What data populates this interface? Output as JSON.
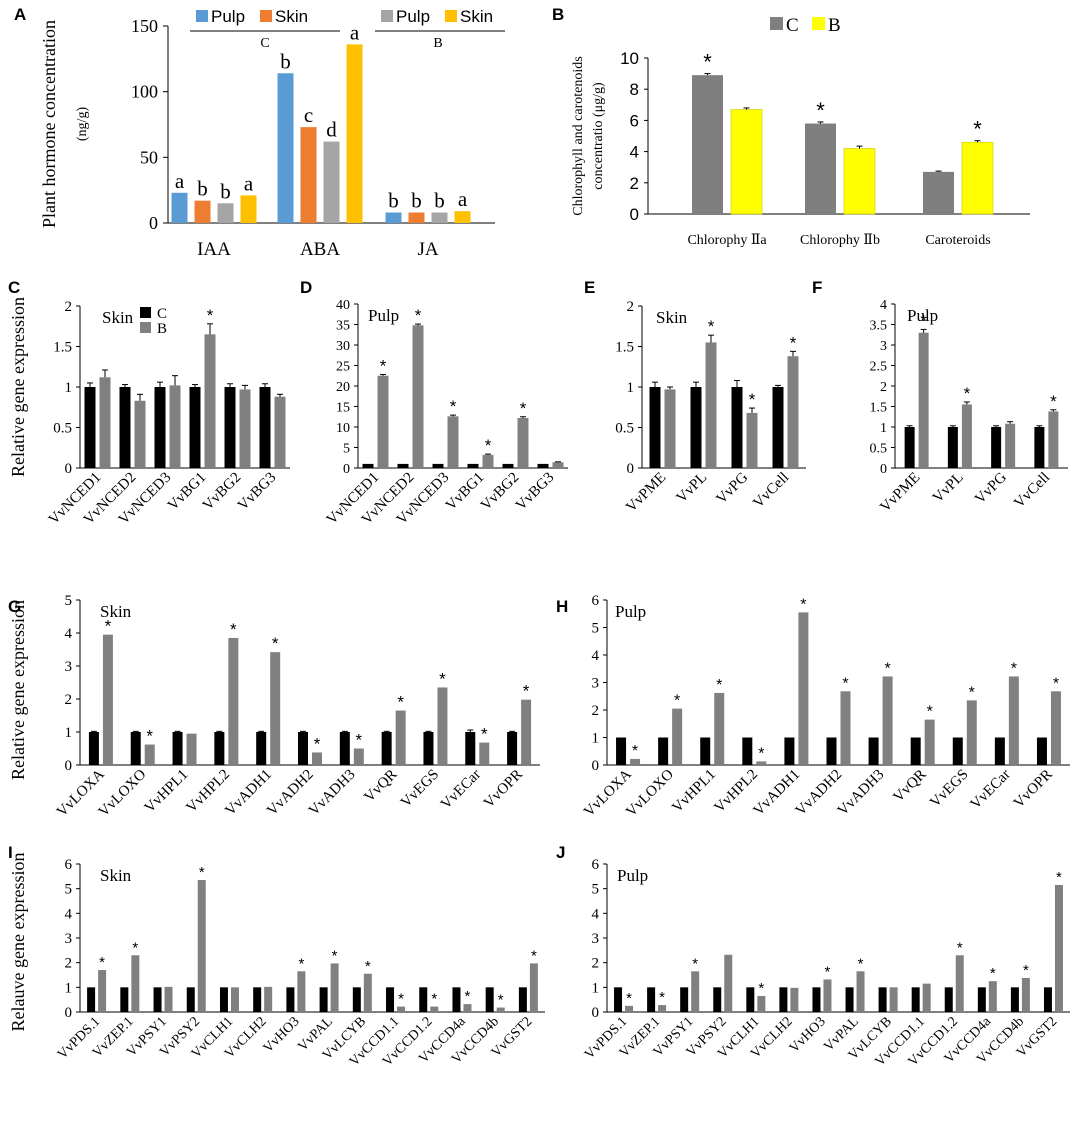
{
  "figure": {
    "panel_letters": [
      "A",
      "B",
      "C",
      "D",
      "E",
      "F",
      "G",
      "H",
      "I",
      "J"
    ]
  },
  "colors": {
    "pulp_c": "#5B9BD5",
    "skin_c": "#ED7D31",
    "pulp_b": "#A5A5A5",
    "skin_b": "#FFC000",
    "control_gray": "#7F7F7F",
    "treat_yellow": "#FFFF00",
    "black_bar": "#000000",
    "gray_bar": "#808080"
  },
  "chart_data": [
    {
      "id": "A",
      "type": "bar",
      "title": "",
      "ylabel": "Plant hormone concentration",
      "ylabel_unit": "(ng/g)",
      "ylim": [
        0,
        150
      ],
      "yticks": [
        0,
        50,
        100,
        150
      ],
      "categories": [
        "IAA",
        "ABA",
        "JA"
      ],
      "legend_groups": [
        {
          "group": "C",
          "entries": [
            "Pulp",
            "Skin"
          ]
        },
        {
          "group": "B",
          "entries": [
            "Pulp",
            "Skin"
          ]
        }
      ],
      "series": [
        {
          "name": "C Pulp",
          "values": [
            23,
            114,
            8
          ],
          "letters": [
            "a",
            "b",
            "b"
          ]
        },
        {
          "name": "C Skin",
          "values": [
            17,
            73,
            8
          ],
          "letters": [
            "b",
            "c",
            "b"
          ]
        },
        {
          "name": "B Pulp",
          "values": [
            15,
            62,
            8
          ],
          "letters": [
            "b",
            "d",
            "b"
          ]
        },
        {
          "name": "B Skin",
          "values": [
            21,
            136,
            9
          ],
          "letters": [
            "a",
            "a",
            "a"
          ]
        }
      ]
    },
    {
      "id": "B",
      "type": "bar",
      "ylabel": "Chlorophyll and carotenoids",
      "ylabel2": "concentratio (μg/g)",
      "ylim": [
        0,
        10
      ],
      "yticks": [
        0,
        2,
        4,
        6,
        8,
        10
      ],
      "categories": [
        "Chlorophy Ⅱa",
        "Chlorophy Ⅱb",
        "Caroteroids"
      ],
      "legend": [
        "C",
        "B"
      ],
      "series": [
        {
          "name": "C",
          "values": [
            8.9,
            5.8,
            2.7
          ],
          "errors": [
            0.1,
            0.1,
            0.05
          ],
          "sig": [
            "*",
            "*",
            ""
          ]
        },
        {
          "name": "B",
          "values": [
            6.7,
            4.2,
            4.6
          ],
          "errors": [
            0.1,
            0.15,
            0.1
          ],
          "sig": [
            "",
            "",
            "*"
          ]
        }
      ]
    },
    {
      "id": "C",
      "type": "bar",
      "tissue": "Skin",
      "ylabel": "Relative gene expression",
      "ylim": [
        0,
        2
      ],
      "yticks": [
        "0",
        "0.5",
        "1",
        "1.5",
        "2"
      ],
      "legend": [
        "C",
        "B"
      ],
      "categories": [
        "VvNCED1",
        "VvNCED2",
        "VvNCED3",
        "VvBG1",
        "VvBG2",
        "VvBG3"
      ],
      "series": [
        {
          "name": "C",
          "values": [
            1,
            1,
            1,
            1,
            1,
            1
          ],
          "errors": [
            0.05,
            0.03,
            0.06,
            0.03,
            0.04,
            0.04
          ]
        },
        {
          "name": "B",
          "values": [
            1.12,
            0.83,
            1.02,
            1.65,
            0.97,
            0.88
          ],
          "errors": [
            0.09,
            0.08,
            0.12,
            0.13,
            0.05,
            0.03
          ]
        }
      ],
      "sig": [
        "",
        "",
        "",
        "*",
        "",
        ""
      ]
    },
    {
      "id": "D",
      "type": "bar",
      "tissue": "Pulp",
      "ylim": [
        0,
        40
      ],
      "yticks": [
        "0",
        "5",
        "10",
        "15",
        "20",
        "25",
        "30",
        "35",
        "40"
      ],
      "categories": [
        "VvNCED1",
        "VvNCED2",
        "VvNCED3",
        "VvBG1",
        "VvBG2",
        "VvBG3"
      ],
      "series": [
        {
          "name": "C",
          "values": [
            1,
            1,
            1,
            1,
            1,
            1
          ],
          "errors": [
            0,
            0,
            0,
            0,
            0,
            0
          ]
        },
        {
          "name": "B",
          "values": [
            22.5,
            34.8,
            12.6,
            3.2,
            12.2,
            1.4
          ],
          "errors": [
            0.3,
            0.3,
            0.3,
            0.2,
            0.3,
            0.1
          ]
        }
      ],
      "sig": [
        "*",
        "*",
        "*",
        "*",
        "*",
        ""
      ]
    },
    {
      "id": "E",
      "type": "bar",
      "tissue": "Skin",
      "ylim": [
        0,
        2
      ],
      "yticks": [
        "0",
        "0.5",
        "1",
        "1.5",
        "2"
      ],
      "categories": [
        "VvPME",
        "VvPL",
        "VvPG",
        "VvCell"
      ],
      "series": [
        {
          "name": "C",
          "values": [
            1,
            1,
            1,
            1
          ],
          "errors": [
            0.06,
            0.06,
            0.08,
            0.02
          ]
        },
        {
          "name": "B",
          "values": [
            0.97,
            1.55,
            0.68,
            1.38
          ],
          "errors": [
            0.03,
            0.09,
            0.06,
            0.06
          ]
        }
      ],
      "sig": [
        "",
        "*",
        "*",
        "*"
      ]
    },
    {
      "id": "F",
      "type": "bar",
      "tissue": "Pulp",
      "ylim": [
        0,
        4
      ],
      "yticks": [
        "0",
        "0.5",
        "1",
        "1.5",
        "2",
        "2.5",
        "3",
        "3.5",
        "4"
      ],
      "categories": [
        "VvPME",
        "VvPL",
        "VvPG",
        "VvCell"
      ],
      "series": [
        {
          "name": "C",
          "values": [
            1,
            1,
            1,
            1
          ],
          "errors": [
            0.03,
            0.03,
            0.03,
            0.03
          ]
        },
        {
          "name": "B",
          "values": [
            3.3,
            1.55,
            1.08,
            1.38
          ],
          "errors": [
            0.08,
            0.06,
            0.05,
            0.04
          ]
        }
      ],
      "sig": [
        "*",
        "*",
        "",
        "*"
      ]
    },
    {
      "id": "G",
      "type": "bar",
      "tissue": "Skin",
      "ylabel": "Relative gene expression",
      "ylim": [
        0,
        5
      ],
      "yticks": [
        "0",
        "1",
        "2",
        "3",
        "4",
        "5"
      ],
      "categories": [
        "VvLOXA",
        "VvLOXO",
        "VvHPL1",
        "VvHPL2",
        "VvADH1",
        "VvADH2",
        "VvADH3",
        "VvQR",
        "VvEGS",
        "VvECar",
        "VvOPR"
      ],
      "series": [
        {
          "name": "C",
          "values": [
            1,
            1,
            1,
            1,
            1,
            1,
            1,
            1,
            1,
            1,
            1
          ],
          "errors": [
            0.02,
            0.02,
            0.02,
            0.02,
            0.02,
            0.02,
            0.02,
            0.02,
            0.02,
            0.06,
            0.02
          ]
        },
        {
          "name": "B",
          "values": [
            3.95,
            0.62,
            0.95,
            3.85,
            3.42,
            0.38,
            0.5,
            1.65,
            2.35,
            0.68,
            1.98
          ]
        }
      ],
      "sig": [
        "*",
        "*",
        "",
        "*",
        "*",
        "*",
        "*",
        "*",
        "*",
        "*",
        "*"
      ]
    },
    {
      "id": "H",
      "type": "bar",
      "tissue": "Pulp",
      "ylim": [
        0,
        6
      ],
      "yticks": [
        "0",
        "1",
        "2",
        "3",
        "4",
        "5",
        "6"
      ],
      "categories": [
        "VvLOXA",
        "VvLOXO",
        "VvHPL1",
        "VvHPL2",
        "VvADH1",
        "VvADH2",
        "VvADH3",
        "VvQR",
        "VvEGS",
        "VvECar",
        "VvOPR"
      ],
      "series": [
        {
          "name": "C",
          "values": [
            1,
            1,
            1,
            1,
            1,
            1,
            1,
            1,
            1,
            1,
            1
          ]
        },
        {
          "name": "B",
          "values": [
            0.22,
            2.05,
            2.62,
            0.13,
            5.55,
            2.68,
            3.22,
            1.65,
            2.35,
            3.22,
            2.68
          ]
        }
      ],
      "sig": [
        "*",
        "*",
        "*",
        "*",
        "*",
        "*",
        "*",
        "*",
        "*",
        "*",
        "*"
      ]
    },
    {
      "id": "I",
      "type": "bar",
      "tissue": "Skin",
      "ylabel": "Relauve gene expression",
      "ylim": [
        0,
        6
      ],
      "yticks": [
        "0",
        "1",
        "2",
        "3",
        "4",
        "5",
        "6"
      ],
      "categories": [
        "VvPDS.1",
        "VvZEP.1",
        "VvPSY1",
        "VvPSY2",
        "VvCLH1",
        "VvCLH2",
        "VvHO3",
        "VvPAL",
        "VvLCYB",
        "VvCCD1.1",
        "VvCCD1.2",
        "VvCCD4a",
        "VvCCD4b",
        "VvGST2"
      ],
      "series": [
        {
          "name": "C",
          "values": [
            1,
            1,
            1,
            1,
            1,
            1,
            1,
            1,
            1,
            1,
            1,
            1,
            1,
            1
          ]
        },
        {
          "name": "B",
          "values": [
            1.7,
            2.3,
            1.02,
            5.35,
            1.0,
            1.02,
            1.65,
            1.97,
            1.55,
            0.22,
            0.22,
            0.32,
            0.18,
            1.97
          ]
        }
      ],
      "sig": [
        "*",
        "*",
        "",
        "*",
        "",
        "",
        "*",
        "*",
        "*",
        "*",
        "*",
        "*",
        "*",
        "*"
      ]
    },
    {
      "id": "J",
      "type": "bar",
      "tissue": "Pulp",
      "ylim": [
        0,
        6
      ],
      "yticks": [
        "0",
        "1",
        "2",
        "3",
        "4",
        "5",
        "6"
      ],
      "categories": [
        "VvPDS.1",
        "VvZEP.1",
        "VvPSY1",
        "VvPSY2",
        "VvCLH1",
        "VvCLH2",
        "VvHO3",
        "VvPAL",
        "VvLCYB",
        "VvCCD1.1",
        "VvCCD1.2",
        "VvCCD4a",
        "VvCCD4b",
        "VvGST2"
      ],
      "series": [
        {
          "name": "C",
          "values": [
            1,
            1,
            1,
            1,
            1,
            1,
            1,
            1,
            1,
            1,
            1,
            1,
            1,
            1
          ]
        },
        {
          "name": "B",
          "values": [
            0.25,
            0.28,
            1.65,
            2.32,
            0.65,
            0.98,
            1.32,
            1.65,
            1.0,
            1.15,
            2.3,
            1.25,
            1.38,
            5.15
          ]
        }
      ],
      "sig": [
        "*",
        "*",
        "*",
        "",
        "*",
        "",
        "*",
        "*",
        "",
        "",
        "*",
        "*",
        "*",
        "*"
      ]
    }
  ]
}
